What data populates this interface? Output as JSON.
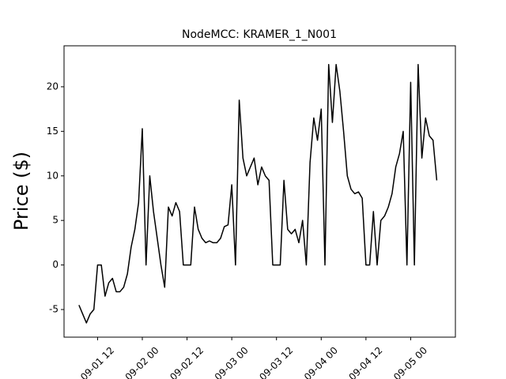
{
  "chart_data": {
    "type": "line",
    "title": "NodeMCC: KRAMER_1_N001",
    "ylabel": "Price ($)",
    "x": [
      "09-01 07",
      "09-01 08",
      "09-01 09",
      "09-01 10",
      "09-01 11",
      "09-01 12",
      "09-01 13",
      "09-01 14",
      "09-01 15",
      "09-01 16",
      "09-01 17",
      "09-01 18",
      "09-01 19",
      "09-01 20",
      "09-01 21",
      "09-01 22",
      "09-01 23",
      "09-02 00",
      "09-02 01",
      "09-02 02",
      "09-02 03",
      "09-02 04",
      "09-02 05",
      "09-02 06",
      "09-02 07",
      "09-02 08",
      "09-02 09",
      "09-02 10",
      "09-02 11",
      "09-02 12",
      "09-02 13",
      "09-02 14",
      "09-02 15",
      "09-02 16",
      "09-02 17",
      "09-02 18",
      "09-02 19",
      "09-02 20",
      "09-02 21",
      "09-02 22",
      "09-02 23",
      "09-03 00",
      "09-03 01",
      "09-03 02",
      "09-03 03",
      "09-03 04",
      "09-03 05",
      "09-03 06",
      "09-03 07",
      "09-03 08",
      "09-03 09",
      "09-03 10",
      "09-03 11",
      "09-03 12",
      "09-03 13",
      "09-03 14",
      "09-03 15",
      "09-03 16",
      "09-03 17",
      "09-03 18",
      "09-03 19",
      "09-03 20",
      "09-03 21",
      "09-03 22",
      "09-03 23",
      "09-04 00",
      "09-04 01",
      "09-04 02",
      "09-04 03",
      "09-04 04",
      "09-04 05",
      "09-04 06",
      "09-04 07",
      "09-04 08",
      "09-04 09",
      "09-04 10",
      "09-04 11",
      "09-04 12",
      "09-04 13",
      "09-04 14",
      "09-04 15",
      "09-04 16",
      "09-04 17",
      "09-04 18",
      "09-04 19",
      "09-04 20",
      "09-04 21",
      "09-04 22",
      "09-04 23",
      "09-05 00",
      "09-05 01",
      "09-05 02",
      "09-05 03",
      "09-05 04",
      "09-05 05",
      "09-05 06",
      "09-05 07"
    ],
    "series": [
      {
        "color": "#000000",
        "values": [
          -4.5,
          -5.5,
          -6.5,
          -5.5,
          -5,
          0,
          0,
          -3.5,
          -2,
          -1.5,
          -3,
          -3,
          -2.5,
          -1,
          2,
          4,
          7,
          15.3,
          0,
          10,
          6,
          3,
          0,
          -2.5,
          6.5,
          5.5,
          7,
          6,
          0,
          0,
          0,
          6.5,
          4,
          3,
          2.5,
          2.7,
          2.5,
          2.5,
          3,
          4.3,
          4.5,
          9,
          0,
          18.5,
          12,
          10,
          11,
          12,
          9,
          11,
          10,
          9.5,
          0,
          0,
          0,
          9.5,
          4,
          3.5,
          4,
          2.5,
          5,
          0,
          11.5,
          16.5,
          14,
          17.5,
          0,
          22.5,
          16,
          22.5,
          19.5,
          15,
          10,
          8.5,
          8,
          8.2,
          7.5,
          0,
          0,
          6,
          0,
          5,
          5.5,
          6.5,
          8,
          11,
          12.5,
          15,
          0,
          20.5,
          0,
          22.5,
          12,
          16.5,
          14.5,
          14,
          9.5
        ]
      }
    ],
    "xlim": [
      "09-01 03",
      "09-05 12"
    ],
    "xticks": [
      "09-01 12",
      "09-02 00",
      "09-02 12",
      "09-03 00",
      "09-03 12",
      "09-04 00",
      "09-04 12",
      "09-05 00"
    ],
    "ylim": [
      -8.1,
      24.6
    ],
    "yticks": [
      -5,
      0,
      5,
      10,
      15,
      20
    ]
  }
}
